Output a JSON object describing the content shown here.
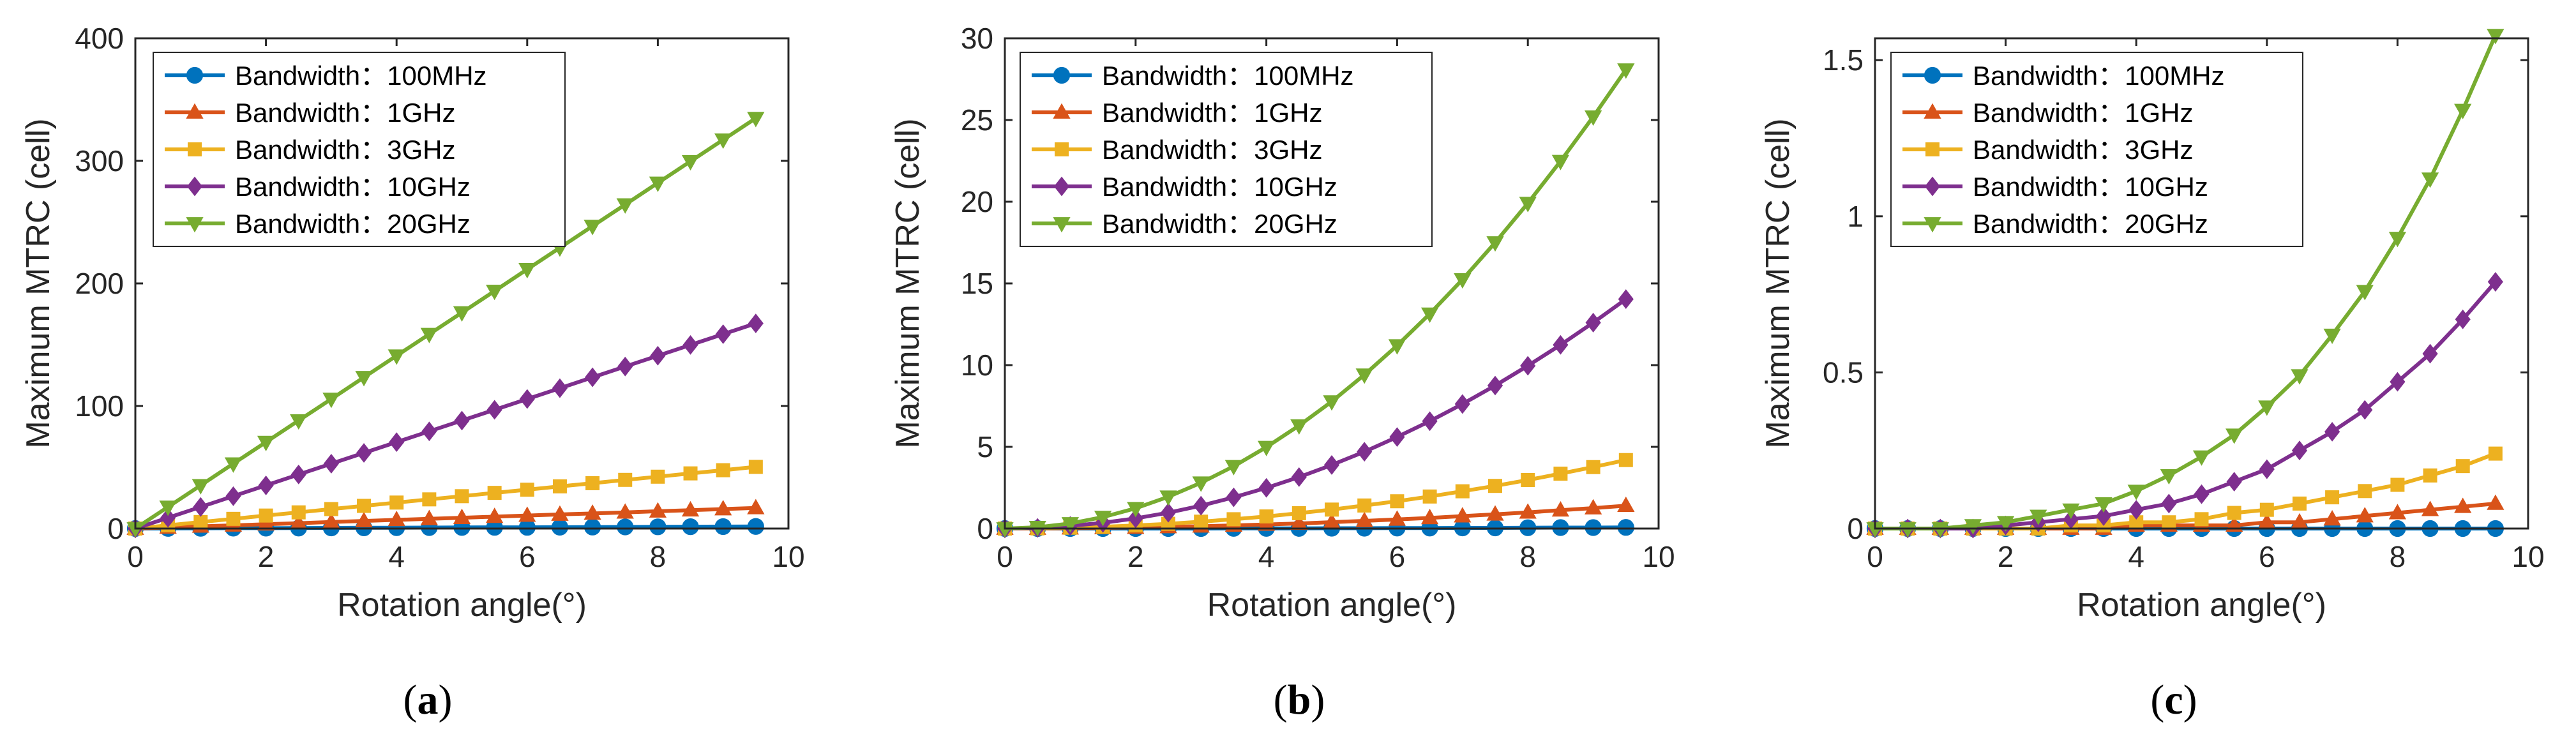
{
  "figure": {
    "panel_labels": [
      {
        "open": "(",
        "letter": "a",
        "close": ")"
      },
      {
        "open": "(",
        "letter": "b",
        "close": ")"
      },
      {
        "open": "(",
        "letter": "c",
        "close": ")"
      }
    ]
  },
  "series_styles": [
    {
      "name": "Bandwidth：100MHz",
      "color": "#0072BD",
      "marker": "circle"
    },
    {
      "name": "Bandwidth：1GHz",
      "color": "#D95319",
      "marker": "triangle-up"
    },
    {
      "name": "Bandwidth：3GHz",
      "color": "#EDB120",
      "marker": "square"
    },
    {
      "name": "Bandwidth：10GHz",
      "color": "#7E2F8E",
      "marker": "diamond"
    },
    {
      "name": "Bandwidth：20GHz",
      "color": "#77AC30",
      "marker": "triangle-down"
    }
  ],
  "chart_data": [
    {
      "type": "line",
      "panel": "a",
      "title": "",
      "xlabel": "Rotation angle(°)",
      "ylabel": "Maximum MTRC (cell)",
      "xlim": [
        0,
        10
      ],
      "ylim": [
        0,
        400
      ],
      "xticks": [
        0,
        2,
        4,
        6,
        8,
        10
      ],
      "yticks": [
        0,
        100,
        200,
        300,
        400
      ],
      "ytick_labels": [
        "0",
        "100",
        "200",
        "300",
        "400"
      ],
      "legend": "top-left",
      "x": [
        0,
        0.5,
        1,
        1.5,
        2,
        2.5,
        3,
        3.5,
        4,
        4.5,
        5,
        5.5,
        6,
        6.5,
        7,
        7.5,
        8,
        8.5,
        9,
        9.5
      ],
      "series": [
        {
          "name": "Bandwidth：100MHz",
          "values": [
            0,
            0.1,
            0.2,
            0.3,
            0.3,
            0.4,
            0.5,
            0.6,
            0.7,
            0.8,
            0.9,
            1.0,
            1.0,
            1.1,
            1.2,
            1.3,
            1.4,
            1.5,
            1.6,
            1.7
          ]
        },
        {
          "name": "Bandwidth：1GHz",
          "values": [
            0,
            0.9,
            1.8,
            2.6,
            3.5,
            4.4,
            5.3,
            6.2,
            7.1,
            7.9,
            8.8,
            9.7,
            10.6,
            11.5,
            12.3,
            13.2,
            14.1,
            15.0,
            15.9,
            16.8
          ]
        },
        {
          "name": "Bandwidth：3GHz",
          "values": [
            0,
            2.6,
            5.3,
            7.9,
            10.6,
            13.2,
            15.9,
            18.5,
            21.2,
            23.8,
            26.4,
            29.1,
            31.7,
            34.4,
            37.0,
            39.7,
            42.3,
            45.0,
            47.6,
            50.3
          ]
        },
        {
          "name": "Bandwidth：10GHz",
          "values": [
            0,
            8.8,
            17.6,
            26.4,
            35.2,
            44.1,
            52.9,
            61.7,
            70.5,
            79.3,
            88.1,
            96.9,
            105.7,
            114.5,
            123.4,
            132.2,
            141.0,
            149.8,
            158.6,
            167.4
          ]
        },
        {
          "name": "Bandwidth：20GHz",
          "values": [
            0,
            17.6,
            35.2,
            52.9,
            70.5,
            88.1,
            105.7,
            123.4,
            141.0,
            158.6,
            176.2,
            193.8,
            211.5,
            229.1,
            246.7,
            264.3,
            282.0,
            299.6,
            317.2,
            334.8
          ]
        }
      ]
    },
    {
      "type": "line",
      "panel": "b",
      "title": "",
      "xlabel": "Rotation angle(°)",
      "ylabel": "Maximum MTRC (cell)",
      "xlim": [
        0,
        10
      ],
      "ylim": [
        0,
        30
      ],
      "xticks": [
        0,
        2,
        4,
        6,
        8,
        10
      ],
      "yticks": [
        0,
        5,
        10,
        15,
        20,
        25,
        30
      ],
      "ytick_labels": [
        "0",
        "5",
        "10",
        "15",
        "20",
        "25",
        "30"
      ],
      "legend": "top-left",
      "x": [
        0,
        0.5,
        1,
        1.5,
        2,
        2.5,
        3,
        3.5,
        4,
        4.5,
        5,
        5.5,
        6,
        6.5,
        7,
        7.5,
        8,
        8.5,
        9,
        9.5
      ],
      "series": [
        {
          "name": "Bandwidth：100MHz",
          "values": [
            0,
            0.0,
            0.0,
            0.0,
            0.0,
            0.0,
            0.0,
            0.01,
            0.01,
            0.01,
            0.02,
            0.02,
            0.03,
            0.03,
            0.04,
            0.04,
            0.05,
            0.06,
            0.06,
            0.07
          ]
        },
        {
          "name": "Bandwidth：1GHz",
          "values": [
            0,
            0.0,
            0.02,
            0.04,
            0.06,
            0.1,
            0.14,
            0.19,
            0.25,
            0.31,
            0.39,
            0.47,
            0.56,
            0.65,
            0.76,
            0.87,
            0.99,
            1.12,
            1.25,
            1.4
          ]
        },
        {
          "name": "Bandwidth：3GHz",
          "values": [
            0,
            0.01,
            0.05,
            0.11,
            0.19,
            0.29,
            0.42,
            0.57,
            0.74,
            0.94,
            1.16,
            1.41,
            1.67,
            1.96,
            2.28,
            2.61,
            2.97,
            3.36,
            3.76,
            4.19
          ]
        },
        {
          "name": "Bandwidth：10GHz",
          "values": [
            0,
            0.04,
            0.16,
            0.35,
            0.62,
            0.97,
            1.4,
            1.91,
            2.49,
            3.15,
            3.89,
            4.7,
            5.6,
            6.57,
            7.62,
            8.75,
            9.96,
            11.24,
            12.6,
            14.04
          ]
        },
        {
          "name": "Bandwidth：20GHz",
          "values": [
            0,
            0.08,
            0.31,
            0.7,
            1.24,
            1.94,
            2.8,
            3.81,
            4.98,
            6.3,
            7.77,
            9.41,
            11.2,
            13.14,
            15.24,
            17.5,
            19.91,
            22.48,
            25.2,
            28.08
          ]
        }
      ]
    },
    {
      "type": "line",
      "panel": "c",
      "title": "",
      "xlabel": "Rotation angle(°)",
      "ylabel": "Maximum MTRC (cell)",
      "xlim": [
        0,
        10
      ],
      "ylim": [
        0,
        1.57
      ],
      "xticks": [
        0,
        2,
        4,
        6,
        8,
        10
      ],
      "yticks": [
        0,
        0.5,
        1,
        1.5
      ],
      "ytick_labels": [
        "0",
        "0.5",
        "1",
        "1.5"
      ],
      "legend": "top-left",
      "x": [
        0,
        0.5,
        1,
        1.5,
        2,
        2.5,
        3,
        3.5,
        4,
        4.5,
        5,
        5.5,
        6,
        6.5,
        7,
        7.5,
        8,
        8.5,
        9,
        9.5
      ],
      "series": [
        {
          "name": "Bandwidth：100MHz",
          "values": [
            0,
            0.0,
            0.0,
            0.0,
            0.0,
            0.0,
            0.0,
            0.0,
            0.0,
            0.0,
            0.0,
            0.0,
            0.0,
            0.0,
            0.0,
            0.0,
            0.0,
            0.0,
            0.0,
            0.0
          ]
        },
        {
          "name": "Bandwidth：1GHz",
          "values": [
            0,
            0.0,
            0.0,
            0.0,
            0.0,
            0.0,
            0.0,
            0.0,
            0.01,
            0.01,
            0.01,
            0.01,
            0.02,
            0.02,
            0.03,
            0.04,
            0.05,
            0.06,
            0.07,
            0.08
          ]
        },
        {
          "name": "Bandwidth：3GHz",
          "values": [
            0,
            0.0,
            0.0,
            0.0,
            0.0,
            0.0,
            0.01,
            0.01,
            0.02,
            0.02,
            0.03,
            0.05,
            0.06,
            0.08,
            0.1,
            0.12,
            0.14,
            0.17,
            0.2,
            0.24
          ]
        },
        {
          "name": "Bandwidth：10GHz",
          "values": [
            0,
            0.0,
            0.0,
            0.0,
            0.01,
            0.02,
            0.03,
            0.04,
            0.06,
            0.08,
            0.11,
            0.15,
            0.19,
            0.25,
            0.31,
            0.38,
            0.47,
            0.56,
            0.67,
            0.79
          ]
        },
        {
          "name": "Bandwidth：20GHz",
          "values": [
            0,
            0.0,
            0.0,
            0.01,
            0.02,
            0.04,
            0.06,
            0.08,
            0.12,
            0.17,
            0.23,
            0.3,
            0.39,
            0.49,
            0.62,
            0.76,
            0.93,
            1.12,
            1.34,
            1.58
          ]
        }
      ]
    }
  ]
}
